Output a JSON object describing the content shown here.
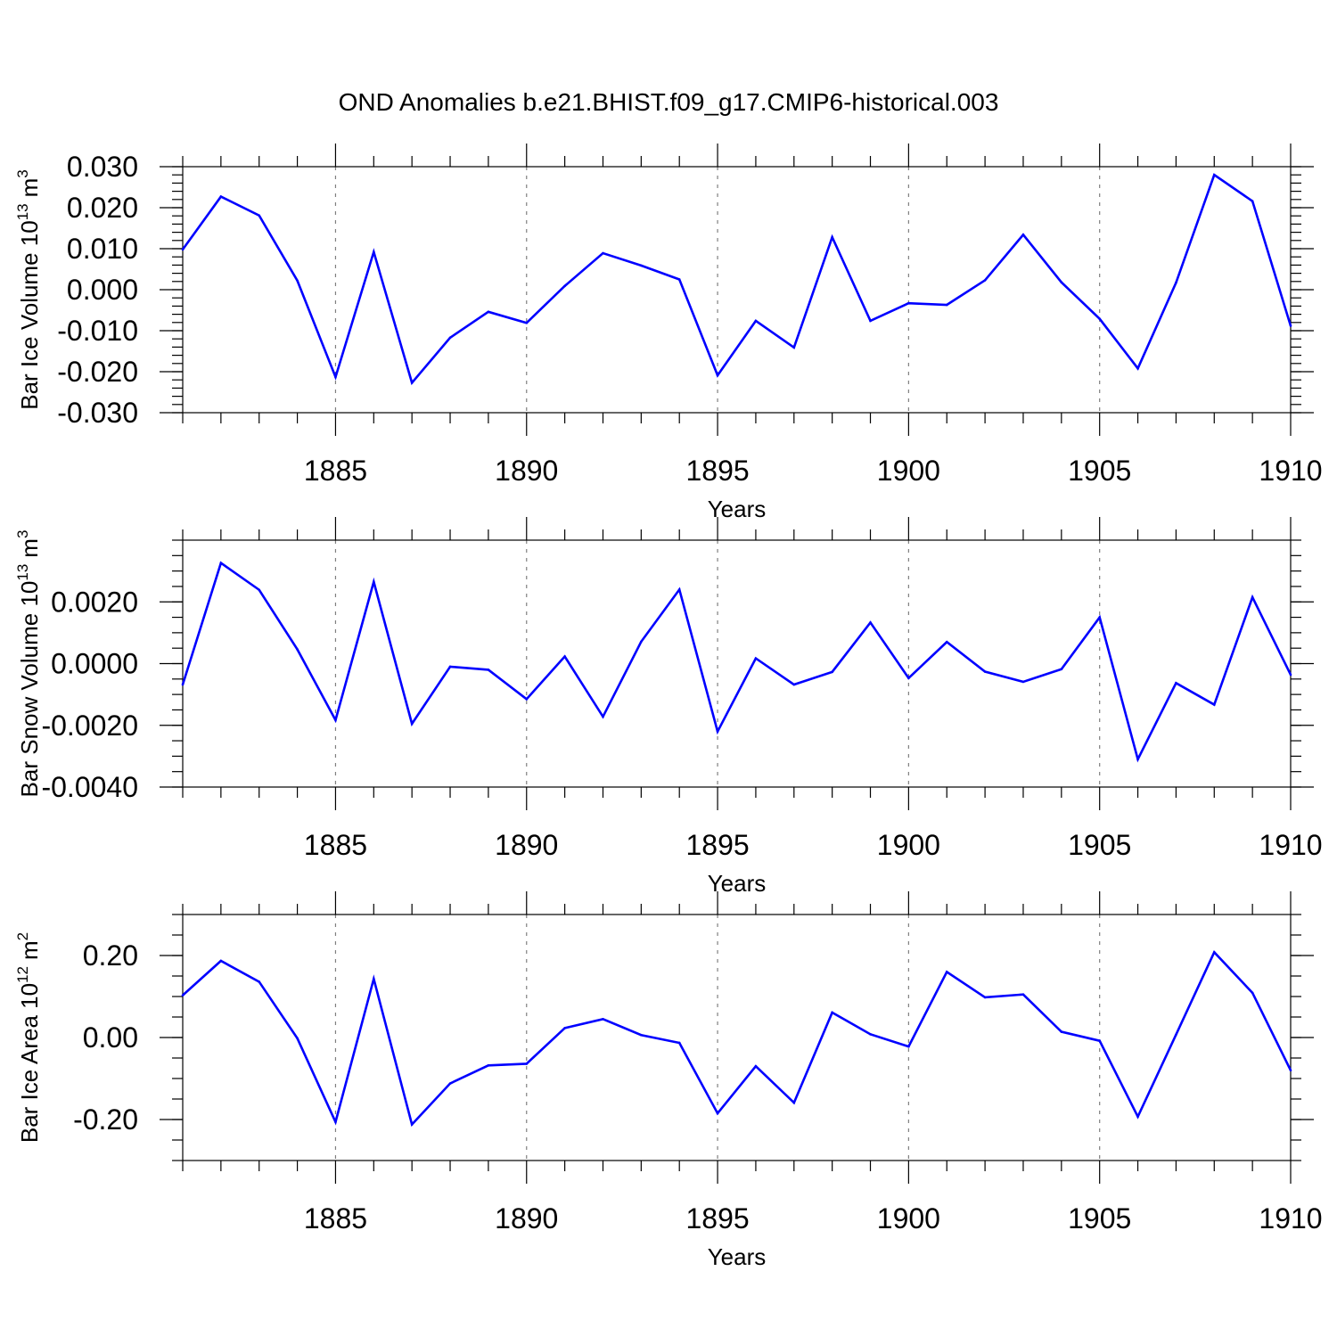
{
  "title": "OND Anomalies b.e21.BHIST.f09_g17.CMIP6-historical.003",
  "colors": {
    "series": "#0000ff",
    "axes": "#000000",
    "grid": "#7f7f7f",
    "background": "#ffffff"
  },
  "chart_data": [
    {
      "type": "line",
      "title": "OND Anomalies b.e21.BHIST.f09_g17.CMIP6-historical.003",
      "xlabel": "Years",
      "ylabel": "Bar Ice Volume 10",
      "ylabel_exp": "13",
      "ylabel_unit": "m",
      "ylabel_unit_exp": "3",
      "xlim": [
        1881,
        1910
      ],
      "ylim": [
        -0.03,
        0.03
      ],
      "xticks": [
        1885,
        1890,
        1895,
        1900,
        1905,
        1910
      ],
      "xtick_labels": [
        "1885",
        "1890",
        "1895",
        "1900",
        "1905",
        "1910"
      ],
      "yticks": [
        -0.03,
        -0.02,
        -0.01,
        0.0,
        0.01,
        0.02,
        0.03
      ],
      "ytick_labels": [
        "-0.030",
        "-0.020",
        "-0.010",
        "0.000",
        "0.010",
        "0.020",
        "0.030"
      ],
      "yminor_step": 0.002,
      "grid": "vertical dashed at major x ticks",
      "x": [
        1881,
        1882,
        1883,
        1884,
        1885,
        1886,
        1887,
        1888,
        1889,
        1890,
        1891,
        1892,
        1893,
        1894,
        1895,
        1896,
        1897,
        1898,
        1899,
        1900,
        1901,
        1902,
        1903,
        1904,
        1905,
        1906,
        1907,
        1908,
        1909,
        1910
      ],
      "values": [
        0.0098,
        0.0227,
        0.0181,
        0.0022,
        -0.0213,
        0.0092,
        -0.0227,
        -0.0117,
        -0.0054,
        -0.0081,
        0.0009,
        0.0089,
        0.0059,
        0.0025,
        -0.0209,
        -0.0076,
        -0.0141,
        0.0128,
        -0.0076,
        -0.0033,
        -0.0037,
        0.0023,
        0.0134,
        0.0018,
        -0.0071,
        -0.0192,
        0.0017,
        0.028,
        0.0216,
        -0.0088
      ]
    },
    {
      "type": "line",
      "xlabel": "Years",
      "ylabel": "Bar Snow Volume 10",
      "ylabel_exp": "13",
      "ylabel_unit": "m",
      "ylabel_unit_exp": "3",
      "xlim": [
        1881,
        1910
      ],
      "ylim": [
        -0.004,
        0.004
      ],
      "xticks": [
        1885,
        1890,
        1895,
        1900,
        1905,
        1910
      ],
      "xtick_labels": [
        "1885",
        "1890",
        "1895",
        "1900",
        "1905",
        "1910"
      ],
      "yticks": [
        -0.004,
        -0.002,
        0.0,
        0.002
      ],
      "ytick_labels": [
        "-0.0040",
        "-0.0020",
        "0.0000",
        "0.0020"
      ],
      "yminor_step": 0.0005,
      "grid": "vertical dashed at major x ticks",
      "x": [
        1881,
        1882,
        1883,
        1884,
        1885,
        1886,
        1887,
        1888,
        1889,
        1890,
        1891,
        1892,
        1893,
        1894,
        1895,
        1896,
        1897,
        1898,
        1899,
        1900,
        1901,
        1902,
        1903,
        1904,
        1905,
        1906,
        1907,
        1908,
        1909,
        1910
      ],
      "values": [
        -0.00068,
        0.00326,
        0.00239,
        0.00046,
        -0.00183,
        0.00265,
        -0.00195,
        -0.0001,
        -0.0002,
        -0.00115,
        0.00023,
        -0.00172,
        0.00071,
        0.0024,
        -0.0022,
        0.00017,
        -0.00068,
        -0.00027,
        0.00133,
        -0.00047,
        0.0007,
        -0.00026,
        -0.00059,
        -0.00018,
        0.0015,
        -0.0031,
        -0.00063,
        -0.00133,
        0.00215,
        -0.00036
      ]
    },
    {
      "type": "line",
      "xlabel": "Years",
      "ylabel": "Bar Ice Area 10",
      "ylabel_exp": "12",
      "ylabel_unit": "m",
      "ylabel_unit_exp": "2",
      "xlim": [
        1881,
        1910
      ],
      "ylim": [
        -0.3,
        0.3
      ],
      "xticks": [
        1885,
        1890,
        1895,
        1900,
        1905,
        1910
      ],
      "xtick_labels": [
        "1885",
        "1890",
        "1895",
        "1900",
        "1905",
        "1910"
      ],
      "yticks": [
        -0.2,
        0.0,
        0.2
      ],
      "ytick_labels": [
        "-0.20",
        "0.00",
        "0.20"
      ],
      "yminor_step": 0.05,
      "grid": "vertical dashed at major x ticks",
      "x": [
        1881,
        1882,
        1883,
        1884,
        1885,
        1886,
        1887,
        1888,
        1889,
        1890,
        1891,
        1892,
        1893,
        1894,
        1895,
        1896,
        1897,
        1898,
        1899,
        1900,
        1901,
        1902,
        1903,
        1904,
        1905,
        1906,
        1907,
        1908,
        1909,
        1910
      ],
      "values": [
        0.103,
        0.187,
        0.136,
        -0.002,
        -0.206,
        0.143,
        -0.212,
        -0.112,
        -0.068,
        -0.064,
        0.023,
        0.045,
        0.006,
        -0.013,
        -0.185,
        -0.07,
        -0.159,
        0.061,
        0.008,
        -0.022,
        0.16,
        0.098,
        0.105,
        0.014,
        -0.008,
        -0.193,
        0.007,
        0.208,
        0.109,
        -0.08
      ]
    }
  ]
}
